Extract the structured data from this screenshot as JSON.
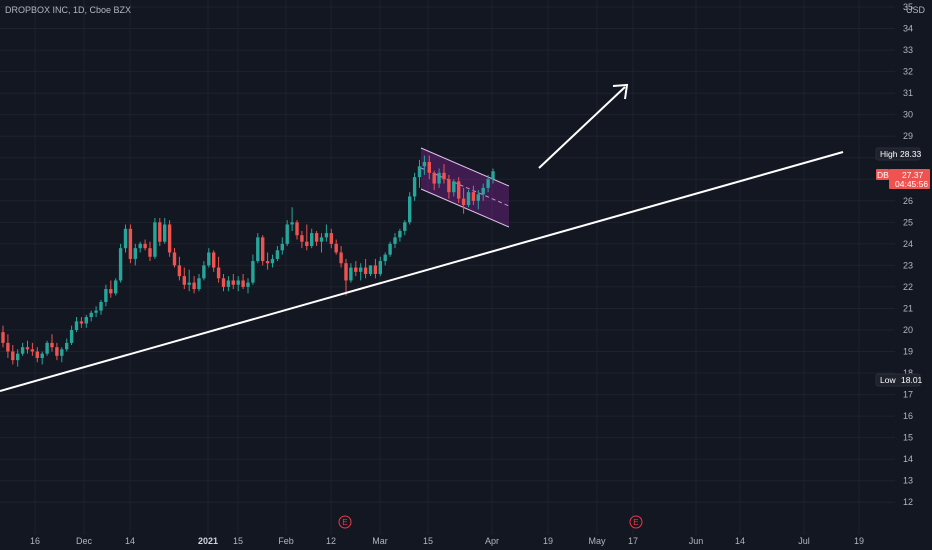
{
  "title": "DROPBOX INC, 1D, Cboe BZX",
  "currency": "USD",
  "colors": {
    "background": "#131722",
    "up": "#26a69a",
    "down": "#ef5350",
    "grid": "#1e222d",
    "channel": "#9c27b0",
    "axis_text": "#b2b5be"
  },
  "badges": {
    "high": {
      "label": "High",
      "value": "28.33"
    },
    "last": {
      "label": "DBX",
      "value": "27.37",
      "countdown": "04:45:56"
    },
    "low": {
      "label": "Low",
      "value": "18.01"
    }
  },
  "earnings_marker": "E",
  "chart_data": {
    "type": "candlestick",
    "title": "DROPBOX INC, 1D, Cboe BZX",
    "ylim": [
      11.5,
      35
    ],
    "y_ticks": [
      "35",
      "34",
      "33",
      "32",
      "31",
      "30",
      "29",
      "28",
      "27",
      "26",
      "25",
      "24",
      "23",
      "22",
      "21",
      "20",
      "19",
      "18",
      "17",
      "16",
      "15",
      "14",
      "13",
      "12"
    ],
    "x_ticks": [
      "16",
      "Dec",
      "14",
      "2021",
      "15",
      "Feb",
      "12",
      "Mar",
      "15",
      "Apr",
      "19",
      "May",
      "17",
      "Jun",
      "14",
      "Jul",
      "19"
    ],
    "series": [
      {
        "values": [
          [
            19.9,
            20.2,
            19.2,
            19.4
          ],
          [
            19.4,
            19.8,
            18.7,
            19.0
          ],
          [
            19.0,
            19.3,
            18.4,
            18.6
          ],
          [
            18.6,
            19.1,
            18.3,
            18.9
          ],
          [
            18.9,
            19.4,
            18.8,
            19.2
          ],
          [
            19.2,
            19.5,
            18.9,
            19.1
          ],
          [
            19.1,
            19.4,
            18.8,
            19.0
          ],
          [
            19.0,
            19.2,
            18.5,
            18.7
          ],
          [
            18.7,
            19.0,
            18.4,
            18.9
          ],
          [
            18.9,
            19.5,
            18.8,
            19.4
          ],
          [
            19.4,
            19.8,
            19.0,
            19.2
          ],
          [
            19.2,
            19.4,
            18.6,
            18.8
          ],
          [
            18.8,
            19.2,
            18.5,
            19.1
          ],
          [
            19.1,
            19.6,
            19.0,
            19.4
          ],
          [
            19.4,
            20.2,
            19.3,
            20.0
          ],
          [
            20.0,
            20.6,
            19.9,
            20.4
          ],
          [
            20.4,
            20.6,
            20.1,
            20.3
          ],
          [
            20.3,
            20.7,
            20.1,
            20.6
          ],
          [
            20.6,
            20.9,
            20.4,
            20.8
          ],
          [
            20.8,
            21.1,
            20.6,
            20.9
          ],
          [
            20.9,
            21.4,
            20.7,
            21.3
          ],
          [
            21.3,
            22.1,
            21.1,
            21.9
          ],
          [
            21.9,
            22.3,
            21.5,
            21.7
          ],
          [
            21.7,
            22.4,
            21.6,
            22.3
          ],
          [
            22.3,
            24.0,
            22.2,
            23.8
          ],
          [
            23.8,
            24.9,
            23.6,
            24.7
          ],
          [
            24.7,
            24.9,
            23.1,
            23.3
          ],
          [
            23.3,
            24.0,
            23.0,
            23.8
          ],
          [
            23.8,
            24.1,
            23.6,
            24.0
          ],
          [
            24.0,
            24.2,
            23.7,
            23.8
          ],
          [
            23.8,
            24.1,
            23.2,
            23.4
          ],
          [
            23.4,
            25.2,
            23.3,
            25.0
          ],
          [
            25.0,
            25.2,
            23.9,
            24.1
          ],
          [
            24.1,
            25.2,
            24.0,
            24.9
          ],
          [
            24.9,
            25.1,
            23.4,
            23.6
          ],
          [
            23.6,
            23.8,
            22.9,
            23.0
          ],
          [
            23.0,
            23.4,
            22.3,
            22.5
          ],
          [
            22.5,
            22.9,
            21.9,
            22.1
          ],
          [
            22.1,
            22.8,
            21.8,
            22.2
          ],
          [
            22.2,
            22.5,
            21.7,
            21.9
          ],
          [
            21.9,
            22.6,
            21.8,
            22.4
          ],
          [
            22.4,
            23.2,
            22.3,
            23.0
          ],
          [
            23.0,
            23.8,
            22.9,
            23.6
          ],
          [
            23.6,
            23.7,
            22.7,
            22.9
          ],
          [
            22.9,
            23.4,
            22.2,
            22.4
          ],
          [
            22.4,
            22.6,
            21.8,
            22.0
          ],
          [
            22.0,
            22.5,
            21.8,
            22.3
          ],
          [
            22.3,
            22.6,
            21.9,
            22.1
          ],
          [
            22.1,
            22.5,
            21.8,
            22.3
          ],
          [
            22.3,
            22.6,
            21.9,
            22.0
          ],
          [
            22.0,
            22.4,
            21.7,
            22.2
          ],
          [
            22.2,
            23.5,
            22.1,
            23.2
          ],
          [
            23.2,
            24.5,
            23.1,
            24.3
          ],
          [
            24.3,
            24.4,
            23.0,
            23.2
          ],
          [
            23.2,
            23.6,
            22.8,
            23.1
          ],
          [
            23.1,
            23.5,
            22.9,
            23.3
          ],
          [
            23.3,
            23.9,
            23.2,
            23.7
          ],
          [
            23.7,
            24.3,
            23.5,
            24.0
          ],
          [
            24.0,
            25.1,
            23.9,
            24.9
          ],
          [
            24.9,
            25.7,
            24.6,
            25.0
          ],
          [
            25.0,
            25.1,
            24.2,
            24.4
          ],
          [
            24.4,
            24.6,
            23.8,
            24.1
          ],
          [
            24.1,
            24.9,
            23.7,
            23.9
          ],
          [
            23.9,
            24.7,
            23.8,
            24.5
          ],
          [
            24.5,
            24.6,
            23.9,
            24.1
          ],
          [
            24.1,
            24.5,
            23.6,
            24.3
          ],
          [
            24.3,
            24.9,
            24.1,
            24.5
          ],
          [
            24.5,
            24.7,
            23.8,
            24.0
          ],
          [
            24.0,
            24.2,
            23.5,
            23.6
          ],
          [
            23.6,
            23.9,
            22.9,
            23.1
          ],
          [
            23.1,
            23.3,
            21.6,
            22.3
          ],
          [
            22.3,
            23.1,
            22.2,
            22.9
          ],
          [
            22.9,
            23.2,
            22.5,
            22.7
          ],
          [
            22.7,
            23.1,
            22.3,
            22.9
          ],
          [
            22.9,
            23.3,
            22.4,
            22.6
          ],
          [
            22.6,
            23.0,
            22.5,
            23.0
          ],
          [
            23.0,
            23.3,
            22.4,
            22.6
          ],
          [
            22.6,
            23.4,
            22.5,
            23.2
          ],
          [
            23.2,
            23.6,
            23.0,
            23.5
          ],
          [
            23.5,
            24.1,
            23.4,
            24.0
          ],
          [
            24.0,
            24.5,
            23.8,
            24.3
          ],
          [
            24.3,
            24.7,
            24.1,
            24.6
          ],
          [
            24.6,
            25.1,
            24.4,
            25.0
          ],
          [
            25.0,
            26.4,
            24.9,
            26.2
          ],
          [
            26.2,
            27.3,
            26.0,
            27.1
          ],
          [
            27.1,
            27.9,
            26.6,
            27.6
          ],
          [
            27.6,
            28.1,
            27.2,
            27.8
          ],
          [
            27.8,
            28.1,
            27.0,
            27.3
          ],
          [
            27.3,
            27.4,
            26.5,
            26.8
          ],
          [
            26.8,
            27.5,
            26.6,
            27.3
          ],
          [
            27.3,
            27.7,
            26.8,
            27.0
          ],
          [
            27.0,
            27.2,
            26.1,
            26.4
          ],
          [
            26.4,
            27.0,
            26.2,
            26.9
          ],
          [
            26.9,
            27.1,
            25.9,
            26.1
          ],
          [
            26.1,
            26.6,
            25.4,
            25.8
          ],
          [
            25.8,
            26.5,
            25.7,
            26.4
          ],
          [
            26.4,
            26.7,
            25.8,
            26.0
          ],
          [
            26.0,
            26.5,
            25.6,
            26.3
          ],
          [
            26.3,
            26.8,
            26.0,
            26.6
          ],
          [
            26.6,
            27.2,
            26.4,
            27.0
          ],
          [
            27.0,
            27.5,
            26.8,
            27.37
          ]
        ]
      }
    ]
  }
}
